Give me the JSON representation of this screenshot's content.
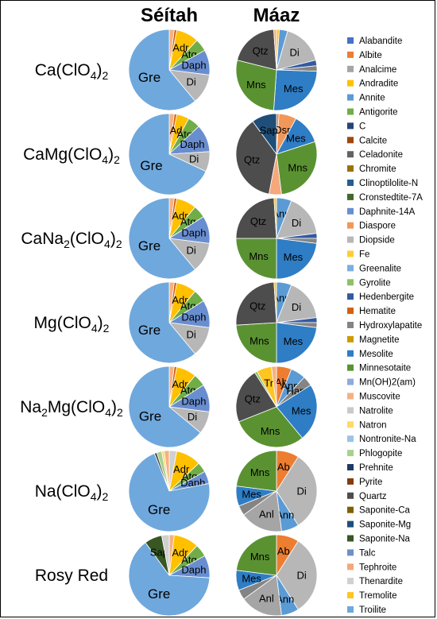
{
  "chart_data": {
    "type": "pie",
    "column_headers": [
      "Séítah",
      "Máaz"
    ],
    "row_labels": [
      [
        "Ca(ClO",
        "4",
        ")",
        "2"
      ],
      [
        "CaMg(ClO",
        "4",
        ")",
        "2"
      ],
      [
        "CaNa",
        "2",
        "(ClO",
        "4",
        ")",
        "2"
      ],
      [
        "Mg(ClO",
        "4",
        ")",
        "2"
      ],
      [
        "Na",
        "2",
        "Mg(ClO",
        "4",
        ")",
        "2"
      ],
      [
        "Na(ClO",
        "4",
        ")",
        "2"
      ],
      [
        "Rosy Red"
      ]
    ],
    "legend": [
      {
        "name": "Alabandite",
        "color": "#4472c4"
      },
      {
        "name": "Albite",
        "color": "#ed7d31"
      },
      {
        "name": "Analcime",
        "color": "#a5a5a5"
      },
      {
        "name": "Andradite",
        "color": "#ffc000"
      },
      {
        "name": "Annite",
        "color": "#5b9bd5"
      },
      {
        "name": "Antigorite",
        "color": "#70ad47"
      },
      {
        "name": "C",
        "color": "#264478"
      },
      {
        "name": "Calcite",
        "color": "#9e480e"
      },
      {
        "name": "Celadonite",
        "color": "#636363"
      },
      {
        "name": "Chromite",
        "color": "#997300"
      },
      {
        "name": "Clinoptilolite-N",
        "color": "#255e91"
      },
      {
        "name": "Cronstedtite-7A",
        "color": "#43682b"
      },
      {
        "name": "Daphnite-14A",
        "color": "#698ed0"
      },
      {
        "name": "Diaspore",
        "color": "#f1975a"
      },
      {
        "name": "Diopside",
        "color": "#b7b7b7"
      },
      {
        "name": "Fe",
        "color": "#ffcd33"
      },
      {
        "name": "Greenalite",
        "color": "#7cafdd"
      },
      {
        "name": "Gyrolite",
        "color": "#8cc168"
      },
      {
        "name": "Hedenbergite",
        "color": "#335aa1"
      },
      {
        "name": "Hematite",
        "color": "#d26012"
      },
      {
        "name": "Hydroxylapatite",
        "color": "#848484"
      },
      {
        "name": "Magnetite",
        "color": "#cc9a00"
      },
      {
        "name": "Mesolite",
        "color": "#2e7dc5"
      },
      {
        "name": "Minnesotaite",
        "color": "#5a9232"
      },
      {
        "name": "Mn(OH)2(am)",
        "color": "#8faadc"
      },
      {
        "name": "Muscovite",
        "color": "#f4b183"
      },
      {
        "name": "Natrolite",
        "color": "#c9c9c9"
      },
      {
        "name": "Natron",
        "color": "#ffd966"
      },
      {
        "name": "Nontronite-Na",
        "color": "#9dc3e6"
      },
      {
        "name": "Phlogopite",
        "color": "#a9d18e"
      },
      {
        "name": "Prehnite",
        "color": "#1f3864"
      },
      {
        "name": "Pyrite",
        "color": "#843c0c"
      },
      {
        "name": "Quartz",
        "color": "#4d4d4d"
      },
      {
        "name": "Saponite-Ca",
        "color": "#7f6000"
      },
      {
        "name": "Saponite-Mg",
        "color": "#1f4e79"
      },
      {
        "name": "Saponite-Na",
        "color": "#385723"
      },
      {
        "name": "Talc",
        "color": "#6f8fc9"
      },
      {
        "name": "Tephroite",
        "color": "#f4a87c"
      },
      {
        "name": "Thenardite",
        "color": "#d0d0d0"
      },
      {
        "name": "Tremolite",
        "color": "#ffc520"
      },
      {
        "name": "Troilite",
        "color": "#6fa8dc"
      }
    ],
    "pies": [
      [
        {
          "slices": [
            {
              "mineral": "Muscovite",
              "value": 2
            },
            {
              "mineral": "Hematite",
              "value": 1
            },
            {
              "mineral": "Andradite",
              "value": 9,
              "label": "Adr"
            },
            {
              "mineral": "Antigorite",
              "value": 5,
              "label": "Atg"
            },
            {
              "mineral": "Daphnite-14A",
              "value": 10,
              "label": "Daph"
            },
            {
              "mineral": "Diopside",
              "value": 12,
              "label": "Di"
            },
            {
              "mineral": "Troilite",
              "value": 61,
              "label": "Gre",
              "big": true
            }
          ]
        },
        {
          "slices": [
            {
              "mineral": "Tremolite",
              "value": 1
            },
            {
              "mineral": "Annite",
              "value": 3
            },
            {
              "mineral": "Diopside",
              "value": 15,
              "label": "Di"
            },
            {
              "mineral": "Hedenbergite",
              "value": 2
            },
            {
              "mineral": "Hydroxylapatite",
              "value": 2
            },
            {
              "mineral": "Mesolite",
              "value": 23,
              "label": "Mes"
            },
            {
              "mineral": "Minnesotaite",
              "value": 25,
              "label": "Mns"
            },
            {
              "mineral": "Quartz",
              "value": 18,
              "label": "Qtz"
            },
            {
              "mineral": "Muscovite",
              "value": 1
            }
          ]
        }
      ],
      [
        {
          "slices": [
            {
              "mineral": "Muscovite",
              "value": 2
            },
            {
              "mineral": "Hematite",
              "value": 1
            },
            {
              "mineral": "Andradite",
              "value": 5,
              "label": "Adr"
            },
            {
              "mineral": "Antigorite",
              "value": 5,
              "label": "Atg"
            },
            {
              "mineral": "Daphnite-14A",
              "value": 11,
              "label": "Daph"
            },
            {
              "mineral": "Diopside",
              "value": 8,
              "label": "Di"
            },
            {
              "mineral": "Troilite",
              "value": 68,
              "label": "Gre",
              "big": true
            }
          ]
        },
        {
          "slices": [
            {
              "mineral": "Albite",
              "value": 1
            },
            {
              "mineral": "Diaspore",
              "value": 7,
              "label": "Dsp"
            },
            {
              "mineral": "Mesolite",
              "value": 12,
              "label": "Mes"
            },
            {
              "mineral": "Minnesotaite",
              "value": 28,
              "label": "Mns"
            },
            {
              "mineral": "Tephroite",
              "value": 5
            },
            {
              "mineral": "Quartz",
              "value": 37,
              "label": "Qtz"
            },
            {
              "mineral": "Saponite-Mg",
              "value": 10,
              "label": "Sap"
            }
          ]
        }
      ],
      [
        {
          "slices": [
            {
              "mineral": "Muscovite",
              "value": 2
            },
            {
              "mineral": "Hematite",
              "value": 1
            },
            {
              "mineral": "Andradite",
              "value": 8,
              "label": "Adr"
            },
            {
              "mineral": "Antigorite",
              "value": 5,
              "label": "Atg"
            },
            {
              "mineral": "Daphnite-14A",
              "value": 11,
              "label": "Daph"
            },
            {
              "mineral": "Diopside",
              "value": 12,
              "label": "Di"
            },
            {
              "mineral": "Troilite",
              "value": 61,
              "label": "Gre",
              "big": true
            }
          ]
        },
        {
          "slices": [
            {
              "mineral": "Annite",
              "value": 6,
              "label": "Ann"
            },
            {
              "mineral": "Diopside",
              "value": 17,
              "label": "Di"
            },
            {
              "mineral": "Hedenbergite",
              "value": 2
            },
            {
              "mineral": "Hydroxylapatite",
              "value": 2
            },
            {
              "mineral": "Mesolite",
              "value": 23,
              "label": "Mes"
            },
            {
              "mineral": "Minnesotaite",
              "value": 25,
              "label": "Mns"
            },
            {
              "mineral": "Quartz",
              "value": 24,
              "label": "Qtz"
            },
            {
              "mineral": "Tremolite",
              "value": 1
            }
          ]
        }
      ],
      [
        {
          "slices": [
            {
              "mineral": "Muscovite",
              "value": 2
            },
            {
              "mineral": "Hematite",
              "value": 1
            },
            {
              "mineral": "Andradite",
              "value": 8,
              "label": "Adr"
            },
            {
              "mineral": "Antigorite",
              "value": 5,
              "label": "Atg"
            },
            {
              "mineral": "Daphnite-14A",
              "value": 11,
              "label": "Daph"
            },
            {
              "mineral": "Diopside",
              "value": 12,
              "label": "Di"
            },
            {
              "mineral": "Troilite",
              "value": 61,
              "label": "Gre",
              "big": true
            }
          ]
        },
        {
          "slices": [
            {
              "mineral": "Annite",
              "value": 6,
              "label": "Ann"
            },
            {
              "mineral": "Diopside",
              "value": 17,
              "label": "Di"
            },
            {
              "mineral": "Hedenbergite",
              "value": 2
            },
            {
              "mineral": "Hydroxylapatite",
              "value": 2
            },
            {
              "mineral": "Mesolite",
              "value": 23,
              "label": "Mes"
            },
            {
              "mineral": "Minnesotaite",
              "value": 24,
              "label": "Mns"
            },
            {
              "mineral": "Quartz",
              "value": 25,
              "label": "Qtz"
            },
            {
              "mineral": "Tremolite",
              "value": 1
            }
          ]
        }
      ],
      [
        {
          "slices": [
            {
              "mineral": "Muscovite",
              "value": 2
            },
            {
              "mineral": "Hematite",
              "value": 1
            },
            {
              "mineral": "Andradite",
              "value": 8,
              "label": "Adr"
            },
            {
              "mineral": "Antigorite",
              "value": 5,
              "label": "Atg"
            },
            {
              "mineral": "Daphnite-14A",
              "value": 11,
              "label": "Daph"
            },
            {
              "mineral": "Diopside",
              "value": 9,
              "label": "Di"
            },
            {
              "mineral": "Troilite",
              "value": 64,
              "label": "Gre",
              "big": true
            }
          ]
        },
        {
          "slices": [
            {
              "mineral": "Albite",
              "value": 6,
              "label": "Ab"
            },
            {
              "mineral": "Annite",
              "value": 6,
              "label": "Ann"
            },
            {
              "mineral": "Hydroxylapatite",
              "value": 4,
              "label": "Hap"
            },
            {
              "mineral": "Mesolite",
              "value": 23,
              "label": "Mes"
            },
            {
              "mineral": "Minnesotaite",
              "value": 30,
              "label": "Mns"
            },
            {
              "mineral": "Quartz",
              "value": 22,
              "label": "Qtz"
            },
            {
              "mineral": "Gyrolite",
              "value": 1
            },
            {
              "mineral": "Tremolite",
              "value": 6,
              "label": "Tr"
            },
            {
              "mineral": "Muscovite",
              "value": 2
            }
          ]
        }
      ],
      [
        {
          "slices": [
            {
              "mineral": "Thenardite",
              "value": 3
            },
            {
              "mineral": "Andradite",
              "value": 10,
              "label": "Adr"
            },
            {
              "mineral": "Antigorite",
              "value": 4,
              "label": "Atg"
            },
            {
              "mineral": "Daphnite-14A",
              "value": 5,
              "label": "Daph"
            },
            {
              "mineral": "Troilite",
              "value": 72,
              "label": "Gre",
              "big": true
            },
            {
              "mineral": "Quartz",
              "value": 1
            },
            {
              "mineral": "Phlogopite",
              "value": 2
            },
            {
              "mineral": "Natron",
              "value": 1
            },
            {
              "mineral": "Muscovite",
              "value": 2
            }
          ]
        },
        {
          "slices": [
            {
              "mineral": "Albite",
              "value": 9,
              "label": "Ab"
            },
            {
              "mineral": "Diopside",
              "value": 32,
              "label": "Di"
            },
            {
              "mineral": "Annite",
              "value": 7,
              "label": "Ann"
            },
            {
              "mineral": "Analcime",
              "value": 17,
              "label": "Anl"
            },
            {
              "mineral": "Hydroxylapatite",
              "value": 4
            },
            {
              "mineral": "Mesolite",
              "value": 8,
              "label": "Mes"
            },
            {
              "mineral": "Minnesotaite",
              "value": 23,
              "label": "Mns"
            }
          ]
        }
      ],
      [
        {
          "slices": [
            {
              "mineral": "Muscovite",
              "value": 2
            },
            {
              "mineral": "Andradite",
              "value": 10,
              "label": "Adr"
            },
            {
              "mineral": "Antigorite",
              "value": 5,
              "label": "Atg"
            },
            {
              "mineral": "Daphnite-14A",
              "value": 9,
              "label": "Daph"
            },
            {
              "mineral": "Troilite",
              "value": 64,
              "label": "Gre",
              "big": true
            },
            {
              "mineral": "Saponite-Na",
              "value": 7,
              "label": "Sap"
            },
            {
              "mineral": "Thenardite",
              "value": 3
            }
          ]
        },
        {
          "slices": [
            {
              "mineral": "Albite",
              "value": 9,
              "label": "Ab"
            },
            {
              "mineral": "Diopside",
              "value": 32,
              "label": "Di"
            },
            {
              "mineral": "Annite",
              "value": 7,
              "label": "Ann"
            },
            {
              "mineral": "Analcime",
              "value": 17,
              "label": "Anl"
            },
            {
              "mineral": "Hydroxylapatite",
              "value": 4
            },
            {
              "mineral": "Mesolite",
              "value": 8,
              "label": "Mes"
            },
            {
              "mineral": "Minnesotaite",
              "value": 23,
              "label": "Mns"
            }
          ]
        }
      ]
    ]
  }
}
